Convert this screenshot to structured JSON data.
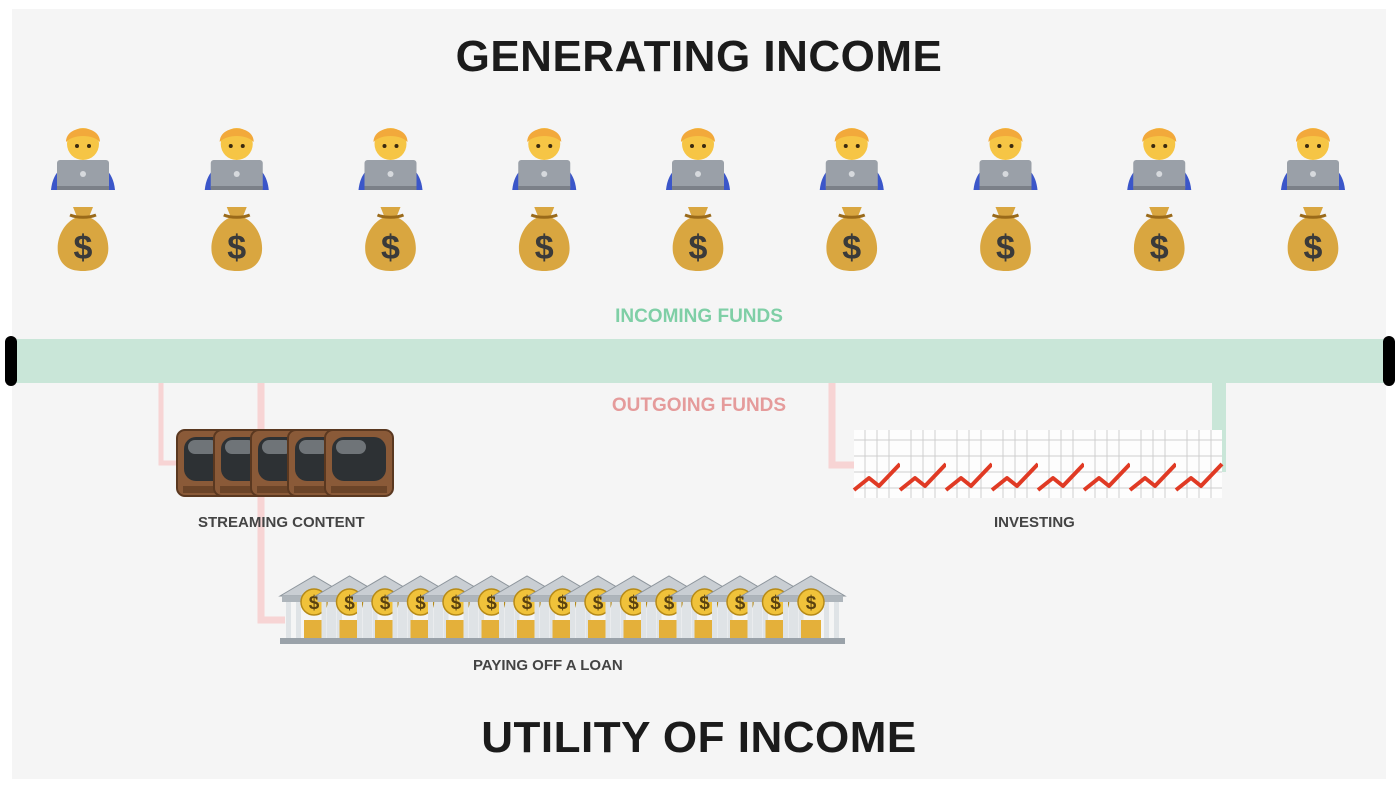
{
  "titles": {
    "top": "GENERATING INCOME",
    "bottom": "UTILITY OF INCOME"
  },
  "flows": {
    "incoming": "INCOMING FUNDS",
    "outgoing": "OUTGOING FUNDS"
  },
  "earners": {
    "count": 9,
    "icons": [
      "technologist-icon",
      "money-bag-icon"
    ]
  },
  "uses": {
    "streaming": {
      "label": "STREAMING CONTENT",
      "icon": "television-icon",
      "count": 5
    },
    "loan": {
      "label": "PAYING OFF A LOAN",
      "icon": "bank-icon",
      "count": 15
    },
    "investing": {
      "label": "INVESTING",
      "icon": "chart-increasing-icon",
      "count": 8
    }
  },
  "colors": {
    "background": "#f5f5f5",
    "incoming": "#c9e6d8",
    "incoming_text": "#7fcfa6",
    "outgoing": "#f7d4d4",
    "outgoing_text": "#e59b9b",
    "title": "#1b1b1b"
  }
}
